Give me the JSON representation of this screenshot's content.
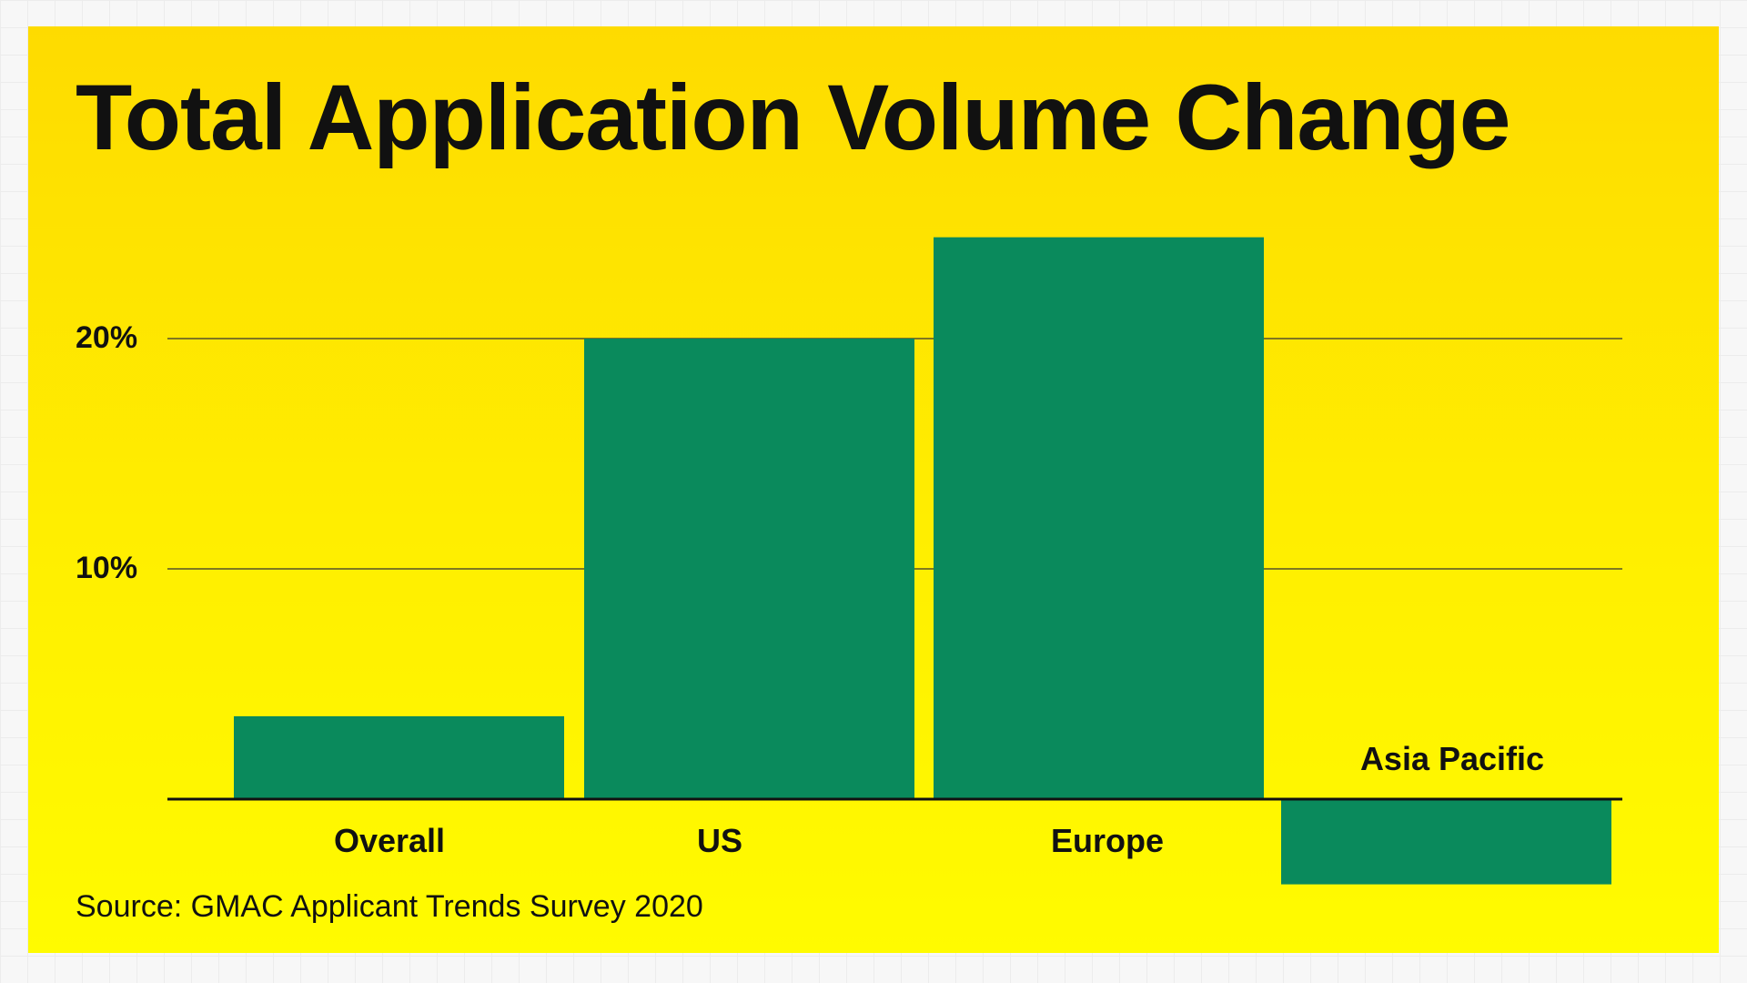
{
  "colors": {
    "background_top": "#fedb00",
    "background_bottom": "#fffb00",
    "bar": "#0a8a5c",
    "text": "#111111"
  },
  "chart_data": {
    "type": "bar",
    "title": "Total Application Volume Change",
    "source": "Source: GMAC Applicant Trends Survey 2020",
    "categories": [
      "Overall",
      "US",
      "Europe",
      "Asia Pacific"
    ],
    "values": [
      3.6,
      20.0,
      24.4,
      -3.7
    ],
    "ylim": [
      -3.7,
      24.4
    ],
    "yticks": [
      10,
      20
    ],
    "ytick_labels": [
      "10%",
      "20%"
    ],
    "xlabel": "",
    "ylabel": "",
    "grid": true,
    "legend": "none"
  }
}
